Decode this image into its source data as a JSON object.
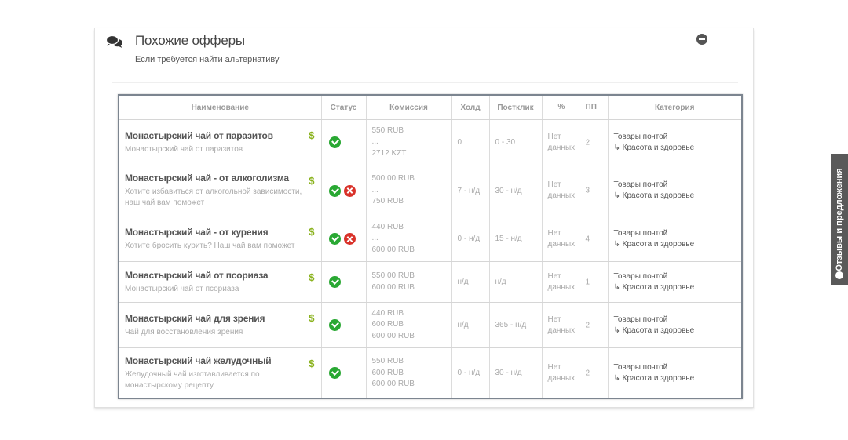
{
  "header": {
    "title": "Похожие офферы",
    "subtitle": "Если требуется найти альтернативу"
  },
  "table": {
    "columns": {
      "name": "Наименование",
      "status": "Статус",
      "commission": "Комиссия",
      "hold": "Холд",
      "postclick": "Постклик",
      "percent": "%",
      "pp": "ПП",
      "category": "Категория"
    },
    "rows": [
      {
        "title": "Монастырский чай от паразитов",
        "desc": "Монастырский чай от паразитов",
        "statuses": [
          "ok"
        ],
        "commission": [
          "550 RUB",
          "...",
          "2712 KZT"
        ],
        "hold": "0",
        "postclick": "0 - 30",
        "percent": [
          "Нет",
          "данных"
        ],
        "pp": "2",
        "category": "Товары почтой",
        "subcategory": "↳ Красота и здоровье"
      },
      {
        "title": "Монастырский чай - от алкоголизма",
        "desc": "Хотите избавиться от алкогольной зависимости, наш чай вам поможет",
        "statuses": [
          "ok",
          "no"
        ],
        "commission": [
          "500.00 RUB",
          "...",
          "750 RUB"
        ],
        "hold": "7 - н/д",
        "postclick": "30 - н/д",
        "percent": [
          "Нет",
          "данных"
        ],
        "pp": "3",
        "category": "Товары почтой",
        "subcategory": "↳ Красота и здоровье"
      },
      {
        "title": "Монастырский чай - от курения",
        "desc": "Хотите бросить курить? Наш чай вам поможет",
        "statuses": [
          "ok",
          "no"
        ],
        "commission": [
          "440 RUB",
          "...",
          "600.00 RUB"
        ],
        "hold": "0 - н/д",
        "postclick": "15 - н/д",
        "percent": [
          "Нет",
          "данных"
        ],
        "pp": "4",
        "category": "Товары почтой",
        "subcategory": "↳ Красота и здоровье"
      },
      {
        "title": "Монастырский чай от псориаза",
        "desc": "Монастырский чай от псориаза",
        "statuses": [
          "ok"
        ],
        "commission": [
          "550.00 RUB",
          "600.00 RUB"
        ],
        "hold": "н/д",
        "postclick": "н/д",
        "percent": [
          "Нет",
          "данных"
        ],
        "pp": "1",
        "category": "Товары почтой",
        "subcategory": "↳ Красота и здоровье"
      },
      {
        "title": "Монастырский чай для зрения",
        "desc": "Чай для восстановления зрения",
        "statuses": [
          "ok"
        ],
        "commission": [
          "440 RUB",
          "600 RUB",
          "600.00 RUB"
        ],
        "hold": "н/д",
        "postclick": "365 - н/д",
        "percent": [
          "Нет",
          "данных"
        ],
        "pp": "2",
        "category": "Товары почтой",
        "subcategory": "↳ Красота и здоровье"
      },
      {
        "title": "Монастырский чай желудочный",
        "desc": "Желудочный чай изготавливается по монастырскому рецепту",
        "statuses": [
          "ok"
        ],
        "commission": [
          "550 RUB",
          "600 RUB",
          "600.00 RUB"
        ],
        "hold": "0 - н/д",
        "postclick": "30 - н/д",
        "percent": [
          "Нет",
          "данных"
        ],
        "pp": "2",
        "category": "Товары почтой",
        "subcategory": "↳ Красота и здоровье"
      }
    ]
  },
  "feedback": {
    "label": "Отзывы и предложения"
  },
  "icons": {
    "header": "comments-icon",
    "collapse": "minus-circle-icon",
    "payout": "dollar-icon",
    "status_ok": "check-circle-icon",
    "status_no": "cross-circle-icon",
    "feedback": "lightbulb-icon"
  },
  "colors": {
    "dollar": "#8ab21d",
    "status_ok": "#29a833",
    "status_no": "#d9322a",
    "feedback_tab": "#595959"
  }
}
